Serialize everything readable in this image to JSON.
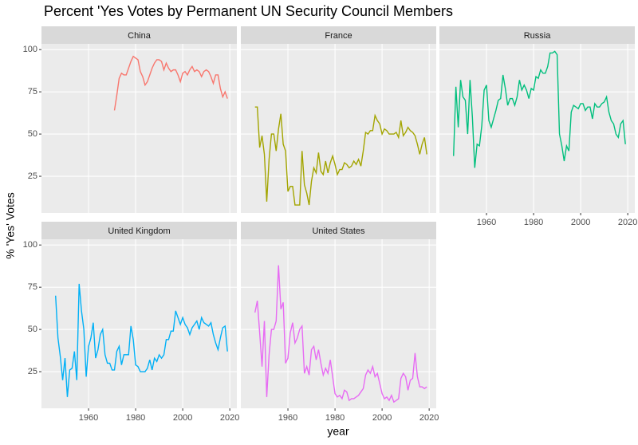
{
  "chart_data": {
    "type": "line",
    "title": "Percent 'Yes Votes by Permanent UN Security Council Members",
    "xlabel": "year",
    "ylabel": "% 'Yes' Votes",
    "x": [
      1946,
      1947,
      1948,
      1949,
      1950,
      1951,
      1952,
      1953,
      1954,
      1955,
      1956,
      1957,
      1958,
      1959,
      1960,
      1961,
      1962,
      1963,
      1964,
      1965,
      1966,
      1967,
      1968,
      1969,
      1970,
      1971,
      1972,
      1973,
      1974,
      1975,
      1976,
      1977,
      1978,
      1979,
      1980,
      1981,
      1982,
      1983,
      1984,
      1985,
      1986,
      1987,
      1988,
      1989,
      1990,
      1991,
      1992,
      1993,
      1994,
      1995,
      1996,
      1997,
      1998,
      1999,
      2000,
      2001,
      2002,
      2003,
      2004,
      2005,
      2006,
      2007,
      2008,
      2009,
      2010,
      2011,
      2012,
      2013,
      2014,
      2015,
      2016,
      2017,
      2018,
      2019
    ],
    "series": [
      {
        "name": "China",
        "color": "#F8766D",
        "values": [
          null,
          null,
          null,
          null,
          null,
          null,
          null,
          null,
          null,
          null,
          null,
          null,
          null,
          null,
          null,
          null,
          null,
          null,
          null,
          null,
          null,
          null,
          null,
          null,
          null,
          64,
          73,
          83,
          86,
          85,
          85,
          89,
          93,
          96,
          95,
          94,
          87,
          84,
          79,
          81,
          85,
          89,
          92,
          94,
          94,
          93,
          88,
          92,
          89,
          87,
          88,
          88,
          85,
          81,
          86,
          87,
          85,
          88,
          90,
          87,
          88,
          87,
          84,
          87,
          88,
          87,
          84,
          80,
          85,
          85,
          77,
          72,
          75,
          71
        ]
      },
      {
        "name": "France",
        "color": "#A3A500",
        "values": [
          66,
          66,
          42,
          49,
          38,
          10,
          35,
          50,
          50,
          40,
          53,
          62,
          44,
          40,
          16,
          19,
          19,
          8,
          8,
          8,
          40,
          20,
          15,
          8,
          22,
          30,
          27,
          39,
          28,
          26,
          34,
          27,
          33,
          37,
          32,
          26,
          29,
          29,
          33,
          32,
          30,
          31,
          34,
          32,
          35,
          31,
          40,
          51,
          50,
          52,
          52,
          61,
          58,
          56,
          50,
          53,
          52,
          50,
          50,
          50,
          51,
          48,
          58,
          49,
          51,
          54,
          52,
          51,
          49,
          44,
          38,
          44,
          48,
          38
        ]
      },
      {
        "name": "Russia",
        "color": "#00BF7D",
        "values": [
          37,
          78,
          54,
          82,
          72,
          70,
          50,
          82,
          60,
          30,
          44,
          43,
          55,
          76,
          79,
          58,
          54,
          59,
          64,
          70,
          71,
          85,
          77,
          67,
          71,
          71,
          67,
          72,
          82,
          76,
          79,
          76,
          71,
          77,
          76,
          84,
          83,
          88,
          86,
          86,
          90,
          98,
          98,
          99,
          97,
          50,
          43,
          34,
          43,
          40,
          63,
          67,
          66,
          65,
          68,
          68,
          64,
          66,
          66,
          59,
          68,
          66,
          66,
          68,
          69,
          72,
          63,
          58,
          56,
          50,
          48,
          56,
          58,
          44
        ]
      },
      {
        "name": "United Kingdom",
        "color": "#00B0F6",
        "values": [
          70,
          45,
          34,
          20,
          33,
          10,
          26,
          27,
          37,
          20,
          77,
          61,
          50,
          22,
          40,
          45,
          54,
          33,
          38,
          47,
          50,
          35,
          30,
          30,
          26,
          26,
          37,
          40,
          29,
          35,
          35,
          35,
          52,
          44,
          29,
          28,
          25,
          25,
          25,
          27,
          32,
          26,
          33,
          31,
          35,
          33,
          35,
          44,
          44,
          49,
          49,
          61,
          57,
          53,
          57,
          53,
          51,
          47,
          51,
          53,
          55,
          50,
          57,
          54,
          53,
          52,
          54,
          47,
          42,
          38,
          45,
          51,
          52,
          37
        ]
      },
      {
        "name": "United States",
        "color": "#E76BF3",
        "values": [
          60,
          67,
          48,
          28,
          55,
          10,
          35,
          50,
          50,
          55,
          88,
          62,
          66,
          30,
          33,
          48,
          54,
          42,
          45,
          50,
          52,
          24,
          28,
          23,
          38,
          40,
          32,
          38,
          30,
          23,
          27,
          24,
          32,
          22,
          12,
          10,
          11,
          9,
          14,
          13,
          8,
          9,
          9,
          10,
          11,
          13,
          15,
          23,
          26,
          24,
          28,
          22,
          24,
          18,
          12,
          9,
          10,
          8,
          11,
          7,
          8,
          9,
          21,
          24,
          22,
          14,
          20,
          21,
          36,
          22,
          16,
          16,
          15,
          16
        ]
      }
    ],
    "xlim": [
      1940,
      2023
    ],
    "ylim": [
      3.3,
      103.4
    ],
    "xticks": [
      1960,
      1980,
      2000,
      2020
    ],
    "yticks": [
      25,
      50,
      75,
      100
    ],
    "grid": true
  }
}
